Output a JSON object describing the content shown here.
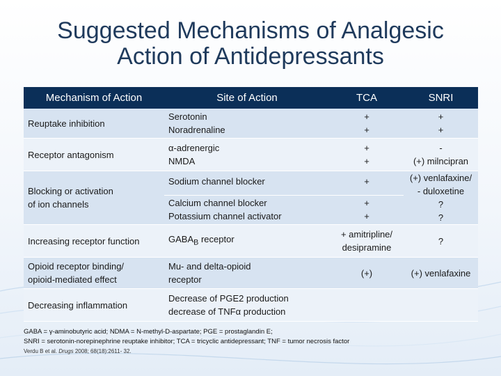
{
  "title": {
    "line1": "Suggested Mechanisms of Analgesic",
    "line2": "Action of Antidepressants"
  },
  "table": {
    "headers": [
      "Mechanism of Action",
      "Site of Action",
      "TCA",
      "SNRI"
    ],
    "rows": [
      {
        "mechanism": "Reuptake inhibition",
        "site": [
          "Serotonin",
          "Noradrenaline"
        ],
        "tca": [
          "+",
          "+"
        ],
        "snri": [
          "+",
          "+"
        ]
      },
      {
        "mechanism": "Receptor antagonism",
        "site": [
          "α-adrenergic",
          "NMDA"
        ],
        "tca": [
          "+",
          "+"
        ],
        "snri": [
          "-",
          "(+) milncipran"
        ]
      },
      {
        "mechanism": [
          "Blocking or activation",
          "of ion channels"
        ],
        "site_a": "Sodium channel blocker",
        "tca_a": "+",
        "site_b": [
          "Calcium channel blocker",
          "Potassium channel activator"
        ],
        "tca_b": [
          "+",
          "+"
        ],
        "snri": [
          "(+) venlafaxine/",
          "- duloxetine",
          "?",
          "?"
        ]
      },
      {
        "mechanism": "Increasing receptor function",
        "site_main": "GABA",
        "site_sub": "B",
        "site_tail": " receptor",
        "tca": [
          "+ amitripline/",
          "desipramine"
        ],
        "snri": "?"
      },
      {
        "mechanism": [
          "Opioid receptor binding/",
          "opioid-mediated effect"
        ],
        "site": [
          "Mu- and delta-opioid",
          "receptor"
        ],
        "tca": "(+)",
        "snri": "(+) venlafaxine"
      },
      {
        "mechanism": "Decreasing inflammation",
        "site": [
          "Decrease of PGE2 production",
          "decrease of TNFα production"
        ],
        "tca": "",
        "snri": ""
      }
    ]
  },
  "footnote": {
    "line1": "GABA = γ-aminobutyric acid; NDMA = N-methyl-D-aspartate; PGE = prostaglandin E;",
    "line2": "SNRI = serotonin-norepinephrine reuptake inhibitor; TCA = tricyclic antidepressant; TNF = tumor necrosis factor",
    "ref_author": "Verdu B et al.",
    "ref_journal": " Drugs",
    "ref_tail": " 2008; 68(18):2611- 32."
  },
  "colors": {
    "header_bg": "#0b2f58",
    "row_shade": "#d7e3f1",
    "row_light": "#ecf2f9",
    "title": "#1f3a5c"
  }
}
